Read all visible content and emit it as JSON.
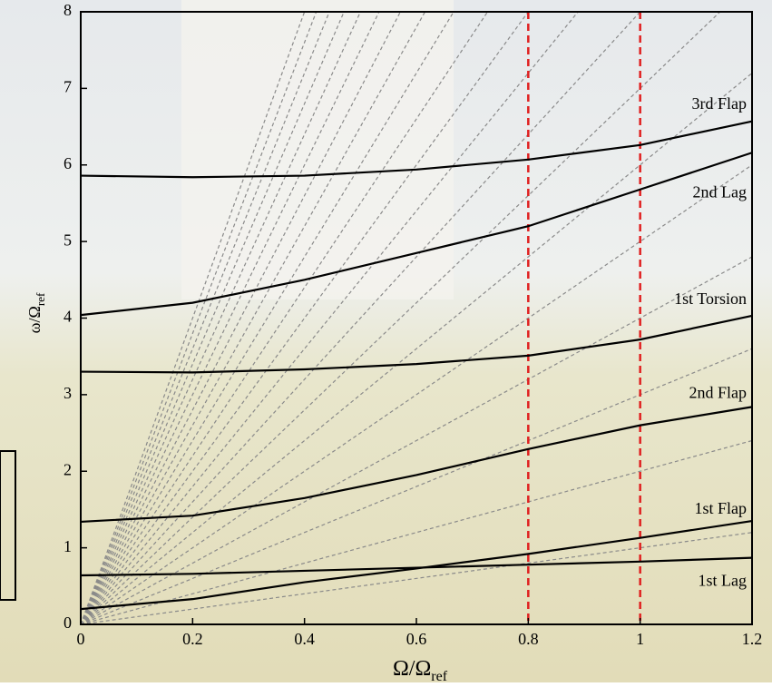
{
  "chart_data": {
    "type": "line",
    "xlabel": {
      "main": "Ω/Ω",
      "sub": "ref"
    },
    "ylabel": {
      "main": "ω/Ω",
      "sub": "ref"
    },
    "x": [
      0,
      0.2,
      0.4,
      0.6,
      0.8,
      1.0,
      1.2
    ],
    "series": [
      {
        "name": "1st Lag",
        "color": "#000000",
        "values": [
          0.64,
          0.66,
          0.7,
          0.74,
          0.78,
          0.82,
          0.87
        ]
      },
      {
        "name": "1st Flap",
        "color": "#000000",
        "values": [
          0.2,
          0.33,
          0.55,
          0.73,
          0.92,
          1.13,
          1.35
        ]
      },
      {
        "name": "2nd Flap",
        "color": "#000000",
        "values": [
          1.34,
          1.42,
          1.65,
          1.95,
          2.29,
          2.6,
          2.84
        ]
      },
      {
        "name": "1st Torsion",
        "color": "#000000",
        "values": [
          3.3,
          3.29,
          3.33,
          3.4,
          3.51,
          3.72,
          4.03
        ]
      },
      {
        "name": "2nd Lag",
        "color": "#000000",
        "values": [
          4.04,
          4.2,
          4.5,
          4.85,
          5.2,
          5.68,
          6.16
        ]
      },
      {
        "name": "3rd Flap",
        "color": "#000000",
        "values": [
          5.86,
          5.84,
          5.86,
          5.94,
          6.07,
          6.26,
          6.57
        ]
      }
    ],
    "harmonics": [
      1,
      2,
      3,
      4,
      5,
      6,
      7,
      8,
      9,
      10,
      11,
      12,
      13,
      14,
      15,
      16,
      17,
      18,
      19,
      20
    ],
    "harmonic_color": "#8a8a8a",
    "reference_lines": [
      0.8,
      1.0
    ],
    "reference_color": "#e02020",
    "xlim": [
      0,
      1.2
    ],
    "ylim": [
      0,
      8
    ],
    "xticks": [
      0,
      0.2,
      0.4,
      0.6,
      0.8,
      1,
      1.2
    ],
    "yticks": [
      0,
      1,
      2,
      3,
      4,
      5,
      6,
      7,
      8
    ]
  }
}
